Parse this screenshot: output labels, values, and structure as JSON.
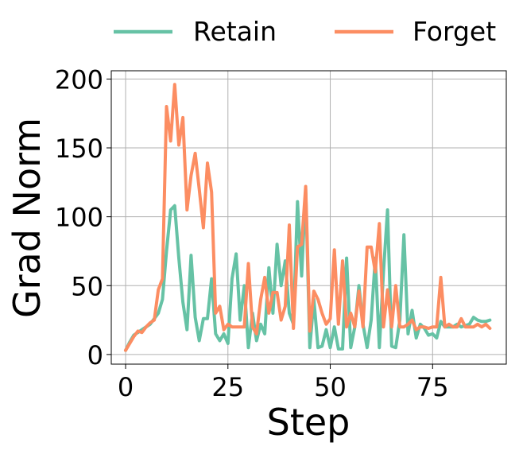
{
  "chart_data": {
    "type": "line",
    "xlabel": "Step",
    "ylabel": "Grad Norm",
    "xlim": [
      -3.5,
      93
    ],
    "ylim": [
      -7,
      206
    ],
    "xticks": [
      0,
      25,
      50,
      75
    ],
    "yticks": [
      0,
      50,
      100,
      150,
      200
    ],
    "grid": true,
    "legend": {
      "placement": "top-center-outside",
      "columns": 2
    },
    "x": [
      0,
      1,
      2,
      3,
      4,
      5,
      6,
      7,
      8,
      9,
      10,
      11,
      12,
      13,
      14,
      15,
      16,
      17,
      18,
      19,
      20,
      21,
      22,
      23,
      24,
      25,
      26,
      27,
      28,
      29,
      30,
      31,
      32,
      33,
      34,
      35,
      36,
      37,
      38,
      39,
      40,
      41,
      42,
      43,
      44,
      45,
      46,
      47,
      48,
      49,
      50,
      51,
      52,
      53,
      54,
      55,
      56,
      57,
      58,
      59,
      60,
      61,
      62,
      63,
      64,
      65,
      66,
      67,
      68,
      69,
      70,
      71,
      72,
      73,
      74,
      75,
      76,
      77,
      78,
      79,
      80,
      81,
      82,
      83,
      84,
      85,
      86,
      87,
      88,
      89
    ],
    "series": [
      {
        "name": "Retain",
        "color": "#66c2a5",
        "values": [
          3,
          9,
          14,
          16,
          18,
          20,
          22,
          26,
          30,
          40,
          75,
          105,
          108,
          70,
          38,
          18,
          72,
          27,
          10,
          26,
          26,
          55,
          15,
          10,
          15,
          8,
          55,
          73,
          25,
          50,
          5,
          30,
          10,
          22,
          15,
          63,
          30,
          80,
          50,
          68,
          30,
          22,
          111,
          57,
          120,
          5,
          40,
          5,
          6,
          18,
          5,
          20,
          4,
          4,
          70,
          5,
          20,
          50,
          22,
          5,
          25,
          70,
          5,
          60,
          105,
          6,
          5,
          25,
          87,
          15,
          32,
          12,
          22,
          19,
          14,
          15,
          12,
          24,
          20,
          20,
          20,
          22,
          20,
          21,
          22,
          27,
          25,
          24,
          24,
          25
        ]
      },
      {
        "name": "Forget",
        "color": "#fc8d62",
        "values": [
          3,
          8,
          13,
          17,
          16,
          20,
          23,
          25,
          47,
          55,
          180,
          155,
          196,
          152,
          172,
          105,
          130,
          146,
          120,
          92,
          139,
          118,
          30,
          35,
          18,
          22,
          20,
          20,
          20,
          20,
          66,
          20,
          15,
          40,
          56,
          30,
          45,
          45,
          25,
          35,
          94,
          19,
          78,
          80,
          122,
          17,
          46,
          40,
          30,
          22,
          26,
          76,
          22,
          68,
          20,
          30,
          20,
          46,
          20,
          78,
          78,
          60,
          95,
          20,
          47,
          20,
          50,
          20,
          20,
          22,
          25,
          18,
          20,
          20,
          19,
          20,
          20,
          56,
          20,
          22,
          20,
          20,
          26,
          20,
          20,
          20,
          22,
          20,
          22,
          19
        ]
      }
    ]
  }
}
